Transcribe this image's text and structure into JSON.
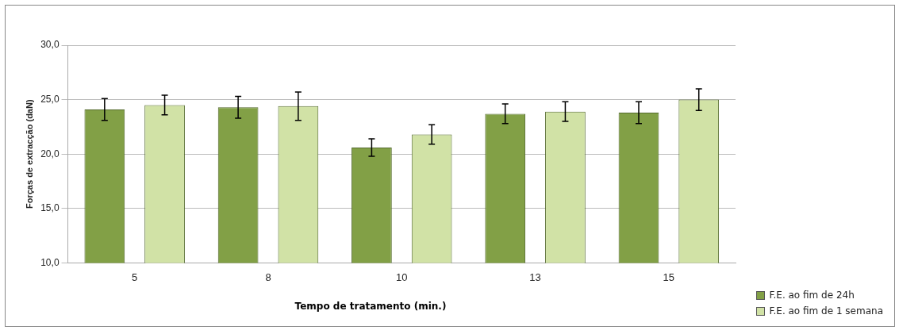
{
  "chart_data": {
    "type": "bar",
    "xlabel": "Tempo de tratamento (min.)",
    "ylabel": "Forças de extracção (daN)",
    "categories": [
      "5",
      "8",
      "10",
      "13",
      "15"
    ],
    "series": [
      {
        "name": "F.E. ao fim de 24h",
        "color": "#82a046",
        "values": [
          24.1,
          24.3,
          20.6,
          23.7,
          23.8
        ],
        "errors": [
          1.0,
          1.0,
          0.8,
          0.9,
          1.0
        ]
      },
      {
        "name": "F.E. ao fim de 1 semana",
        "color": "#d1e2a6",
        "values": [
          24.5,
          24.4,
          21.8,
          23.9,
          25.0
        ],
        "errors": [
          0.9,
          1.3,
          0.9,
          0.9,
          1.0
        ]
      }
    ],
    "ylim": [
      10,
      30
    ],
    "yticks": [
      {
        "value": 10,
        "label": "10,0"
      },
      {
        "value": 15,
        "label": "15,0"
      },
      {
        "value": 20,
        "label": "20,0"
      },
      {
        "value": 25,
        "label": "25,0"
      },
      {
        "value": 30,
        "label": "30,0"
      }
    ],
    "grid": "y",
    "legend": "bottom right"
  }
}
